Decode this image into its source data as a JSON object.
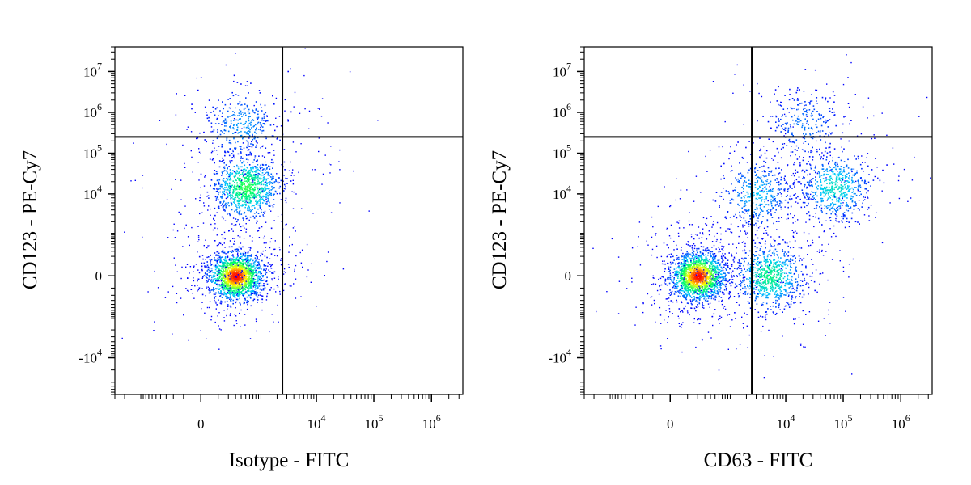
{
  "chart_data": [
    {
      "type": "scatter",
      "subtype": "flow-cytometry-density-dot-plot",
      "xlabel": "Isotype - FITC",
      "ylabel": "CD123 - PE-Cy7",
      "x_scale": "biexponential",
      "y_scale": "biexponential",
      "x_ticks": [
        {
          "value": 0,
          "base": "0",
          "exp": ""
        },
        {
          "value": 10000,
          "base": "10",
          "exp": "4"
        },
        {
          "value": 100000,
          "base": "10",
          "exp": "5"
        },
        {
          "value": 1000000,
          "base": "10",
          "exp": "6"
        }
      ],
      "y_ticks": [
        {
          "value": -10000,
          "base": "-10",
          "exp": "4"
        },
        {
          "value": 0,
          "base": "0",
          "exp": ""
        },
        {
          "value": 10000,
          "base": "10",
          "exp": "4"
        },
        {
          "value": 100000,
          "base": "10",
          "exp": "5"
        },
        {
          "value": 1000000,
          "base": "10",
          "exp": "6"
        },
        {
          "value": 10000000,
          "base": "10",
          "exp": "7"
        }
      ],
      "quadrant_gate": {
        "x": 2500,
        "y": 250000
      },
      "populations": [
        {
          "x_center": 300,
          "y_center": 0,
          "relative_density": 1.0
        },
        {
          "x_center": 500,
          "y_center": 15000,
          "relative_density": 0.55
        },
        {
          "x_center": 400,
          "y_center": 500000,
          "relative_density": 0.2
        }
      ],
      "color_scale": [
        "#0000ff",
        "#00c8ff",
        "#00ff64",
        "#ffff00",
        "#ff0000"
      ]
    },
    {
      "type": "scatter",
      "subtype": "flow-cytometry-density-dot-plot",
      "xlabel": "CD63 - FITC",
      "ylabel": "CD123 - PE-Cy7",
      "x_scale": "biexponential",
      "y_scale": "biexponential",
      "x_ticks": [
        {
          "value": 0,
          "base": "0",
          "exp": ""
        },
        {
          "value": 10000,
          "base": "10",
          "exp": "4"
        },
        {
          "value": 100000,
          "base": "10",
          "exp": "5"
        },
        {
          "value": 1000000,
          "base": "10",
          "exp": "6"
        }
      ],
      "y_ticks": [
        {
          "value": -10000,
          "base": "-10",
          "exp": "4"
        },
        {
          "value": 0,
          "base": "0",
          "exp": ""
        },
        {
          "value": 10000,
          "base": "10",
          "exp": "4"
        },
        {
          "value": 100000,
          "base": "10",
          "exp": "5"
        },
        {
          "value": 1000000,
          "base": "10",
          "exp": "6"
        },
        {
          "value": 10000000,
          "base": "10",
          "exp": "7"
        }
      ],
      "quadrant_gate": {
        "x": 2500,
        "y": 250000
      },
      "populations": [
        {
          "x_center": 200,
          "y_center": 0,
          "relative_density": 1.0
        },
        {
          "x_center": 5000,
          "y_center": 0,
          "relative_density": 0.45
        },
        {
          "x_center": 70000,
          "y_center": 15000,
          "relative_density": 0.35
        },
        {
          "x_center": 3000,
          "y_center": 10000,
          "relative_density": 0.25
        },
        {
          "x_center": 20000,
          "y_center": 500000,
          "relative_density": 0.15
        }
      ],
      "color_scale": [
        "#0000ff",
        "#00c8ff",
        "#00ff64",
        "#ffff00",
        "#ff0000"
      ]
    }
  ]
}
